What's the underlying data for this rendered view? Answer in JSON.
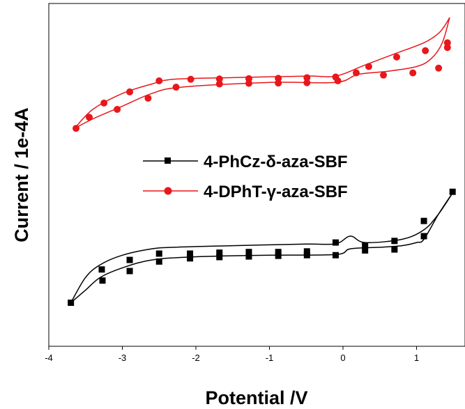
{
  "chart_data": {
    "type": "line",
    "xlabel": "Potential /V",
    "ylabel": "Current / 1e-4A",
    "xlim": [
      -4,
      1.6
    ],
    "x_ticks": [
      -4,
      -3,
      -2,
      -1,
      0,
      1
    ],
    "ylim": [
      0,
      100
    ],
    "y_ticks_shown": false,
    "grid": false,
    "legend_position": "center",
    "series": [
      {
        "name": "4-PhCz-δ-aza-SBF",
        "color": "#000000",
        "marker": "square",
        "curve_upper": [
          [
            -3.7,
            10
          ],
          [
            -3.5,
            18
          ],
          [
            -3.3,
            22
          ],
          [
            -3.0,
            25
          ],
          [
            -2.6,
            27
          ],
          [
            -2.3,
            27.5
          ],
          [
            -1.5,
            28
          ],
          [
            -0.5,
            28.5
          ],
          [
            -0.1,
            28.6
          ],
          [
            0.1,
            31
          ],
          [
            0.3,
            29
          ],
          [
            0.8,
            30
          ],
          [
            1.1,
            33
          ],
          [
            1.3,
            38
          ],
          [
            1.5,
            45
          ]
        ],
        "curve_lower": [
          [
            -3.7,
            10
          ],
          [
            -3.5,
            14
          ],
          [
            -3.3,
            18
          ],
          [
            -3.0,
            21
          ],
          [
            -2.6,
            23.5
          ],
          [
            -2.0,
            24.5
          ],
          [
            -1.0,
            25
          ],
          [
            -0.1,
            25.2
          ],
          [
            0.1,
            27
          ],
          [
            0.5,
            27.5
          ],
          [
            0.8,
            28
          ],
          [
            1.0,
            29
          ],
          [
            1.1,
            30
          ],
          [
            1.3,
            38
          ],
          [
            1.5,
            45
          ]
        ],
        "marker_points": [
          [
            -3.7,
            10
          ],
          [
            -3.28,
            20.5
          ],
          [
            -3.27,
            17
          ],
          [
            -2.9,
            23.5
          ],
          [
            -2.9,
            20
          ],
          [
            -2.5,
            25.5
          ],
          [
            -2.5,
            23
          ],
          [
            -2.08,
            25.5
          ],
          [
            -2.08,
            24
          ],
          [
            -1.68,
            25.8
          ],
          [
            -1.68,
            24.4
          ],
          [
            -1.28,
            26
          ],
          [
            -1.28,
            24.6
          ],
          [
            -0.88,
            26
          ],
          [
            -0.88,
            24.8
          ],
          [
            -0.49,
            26.2
          ],
          [
            -0.49,
            25
          ],
          [
            -0.1,
            29
          ],
          [
            -0.1,
            25
          ],
          [
            0.3,
            28
          ],
          [
            0.3,
            26.5
          ],
          [
            0.7,
            26.8
          ],
          [
            0.7,
            29.5
          ],
          [
            1.1,
            31
          ],
          [
            1.1,
            35.8
          ],
          [
            1.49,
            45
          ]
        ]
      },
      {
        "name": "4-DPhT-γ-aza-SBF",
        "color": "#e8171b",
        "marker": "circle",
        "curve_upper": [
          [
            -3.65,
            65
          ],
          [
            -3.4,
            71
          ],
          [
            -3.0,
            76
          ],
          [
            -2.6,
            79
          ],
          [
            -2.3,
            80.5
          ],
          [
            -1.5,
            81
          ],
          [
            -0.5,
            81.5
          ],
          [
            -0.1,
            81.5
          ],
          [
            0.3,
            85
          ],
          [
            0.7,
            88.5
          ],
          [
            1.1,
            92
          ],
          [
            1.3,
            95
          ],
          [
            1.4,
            98
          ],
          [
            1.45,
            100
          ]
        ],
        "curve_lower": [
          [
            -3.65,
            65
          ],
          [
            -3.4,
            68
          ],
          [
            -3.0,
            72
          ],
          [
            -2.6,
            76
          ],
          [
            -2.2,
            78
          ],
          [
            -1.0,
            79.5
          ],
          [
            -0.1,
            79.5
          ],
          [
            0.2,
            82
          ],
          [
            0.6,
            83
          ],
          [
            1.0,
            84.5
          ],
          [
            1.2,
            87
          ],
          [
            1.35,
            92
          ],
          [
            1.45,
            100
          ]
        ],
        "marker_points": [
          [
            -3.63,
            65
          ],
          [
            -3.45,
            68.5
          ],
          [
            -3.25,
            73
          ],
          [
            -3.07,
            71
          ],
          [
            -2.9,
            76.5
          ],
          [
            -2.65,
            74.5
          ],
          [
            -2.5,
            80
          ],
          [
            -2.27,
            78
          ],
          [
            -2.07,
            80.5
          ],
          [
            -1.68,
            80.6
          ],
          [
            -1.68,
            79
          ],
          [
            -1.28,
            80.7
          ],
          [
            -1.28,
            79.2
          ],
          [
            -0.88,
            80.8
          ],
          [
            -0.88,
            79.3
          ],
          [
            -0.49,
            81
          ],
          [
            -0.49,
            79.4
          ],
          [
            -0.07,
            80
          ],
          [
            -0.1,
            81.2
          ],
          [
            0.18,
            82.5
          ],
          [
            0.35,
            84.5
          ],
          [
            0.55,
            81.8
          ],
          [
            0.73,
            87.5
          ],
          [
            0.95,
            82.5
          ],
          [
            1.12,
            89.5
          ],
          [
            1.3,
            84
          ],
          [
            1.42,
            90.5
          ],
          [
            1.42,
            92
          ]
        ]
      }
    ]
  }
}
